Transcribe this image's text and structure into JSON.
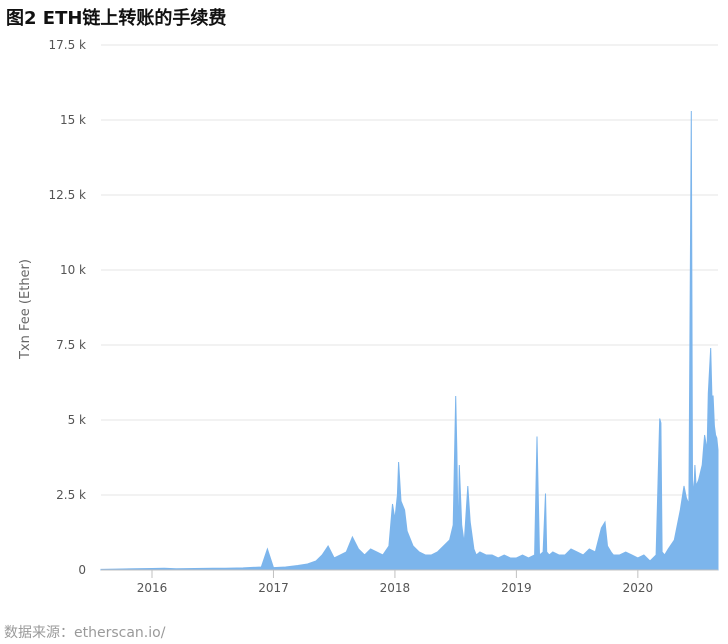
{
  "header": {
    "title": "图2 ETH链上转账的手续费"
  },
  "footer": {
    "source": "数据来源：etherscan.io/"
  },
  "colors": {
    "series": "#7cb5ec",
    "grid": "#e6e6e6",
    "axis": "#c0c0c0"
  },
  "chart_data": {
    "type": "area",
    "title": "图2 ETH链上转账的手续费",
    "xlabel": "",
    "ylabel": "Txn Fee (Ether)",
    "ylim": [
      0,
      17500
    ],
    "xlim": [
      2015.58,
      2020.66
    ],
    "grid": true,
    "legend": "none",
    "y_ticks": [
      {
        "value": 0,
        "label": "0"
      },
      {
        "value": 2500,
        "label": "2.5 k"
      },
      {
        "value": 5000,
        "label": "5 k"
      },
      {
        "value": 7500,
        "label": "7.5 k"
      },
      {
        "value": 10000,
        "label": "10 k"
      },
      {
        "value": 12500,
        "label": "12.5 k"
      },
      {
        "value": 15000,
        "label": "15 k"
      },
      {
        "value": 17500,
        "label": "17.5 k"
      }
    ],
    "x_ticks": [
      {
        "value": 2016.0,
        "label": "2016"
      },
      {
        "value": 2017.0,
        "label": "2017"
      },
      {
        "value": 2018.0,
        "label": "2018"
      },
      {
        "value": 2019.0,
        "label": "2019"
      },
      {
        "value": 2020.0,
        "label": "2020"
      }
    ],
    "series": [
      {
        "x": [
          2015.58,
          2015.7,
          2015.85,
          2016.0,
          2016.1,
          2016.2,
          2016.35,
          2016.5,
          2016.6,
          2016.75,
          2016.9,
          2016.95,
          2017.0,
          2017.1,
          2017.2,
          2017.28,
          2017.35,
          2017.4,
          2017.45,
          2017.5,
          2017.55,
          2017.6,
          2017.65,
          2017.7,
          2017.75,
          2017.8,
          2017.85,
          2017.9,
          2017.95,
          2017.98,
          2018.0,
          2018.02,
          2018.03,
          2018.05,
          2018.08,
          2018.1,
          2018.15,
          2018.2,
          2018.25,
          2018.3,
          2018.35,
          2018.4,
          2018.45,
          2018.48,
          2018.5,
          2018.51,
          2018.52,
          2018.53,
          2018.55,
          2018.57,
          2018.6,
          2018.62,
          2018.65,
          2018.67,
          2018.7,
          2018.75,
          2018.8,
          2018.85,
          2018.9,
          2018.95,
          2019.0,
          2019.05,
          2019.1,
          2019.15,
          2019.17,
          2019.19,
          2019.22,
          2019.24,
          2019.25,
          2019.27,
          2019.3,
          2019.35,
          2019.4,
          2019.45,
          2019.5,
          2019.55,
          2019.6,
          2019.65,
          2019.7,
          2019.73,
          2019.75,
          2019.78,
          2019.8,
          2019.85,
          2019.9,
          2019.95,
          2020.0,
          2020.05,
          2020.1,
          2020.15,
          2020.18,
          2020.19,
          2020.2,
          2020.22,
          2020.25,
          2020.3,
          2020.35,
          2020.38,
          2020.4,
          2020.42,
          2020.44,
          2020.45,
          2020.46,
          2020.47,
          2020.48,
          2020.5,
          2020.53,
          2020.55,
          2020.57,
          2020.58,
          2020.6,
          2020.61,
          2020.62,
          2020.63,
          2020.64,
          2020.65,
          2020.66
        ],
        "values": [
          20,
          30,
          40,
          50,
          60,
          40,
          50,
          60,
          60,
          70,
          100,
          700,
          80,
          100,
          150,
          200,
          300,
          500,
          800,
          400,
          500,
          600,
          1100,
          700,
          500,
          700,
          600,
          500,
          800,
          2200,
          1700,
          2500,
          3600,
          2300,
          2000,
          1300,
          800,
          600,
          500,
          500,
          600,
          800,
          1000,
          1500,
          5800,
          3900,
          1000,
          3500,
          1500,
          900,
          2800,
          1600,
          700,
          500,
          600,
          500,
          500,
          400,
          500,
          400,
          400,
          500,
          400,
          500,
          4450,
          500,
          600,
          2550,
          600,
          500,
          600,
          500,
          500,
          700,
          600,
          500,
          700,
          600,
          1400,
          1600,
          800,
          600,
          500,
          500,
          600,
          500,
          400,
          500,
          300,
          500,
          5050,
          4900,
          600,
          500,
          700,
          1000,
          2000,
          2800,
          2400,
          2200,
          15300,
          3000,
          2500,
          3500,
          2800,
          3000,
          3500,
          4500,
          4000,
          5900,
          7400,
          5800,
          5800,
          4800,
          4500,
          4400,
          4000
        ]
      }
    ]
  }
}
